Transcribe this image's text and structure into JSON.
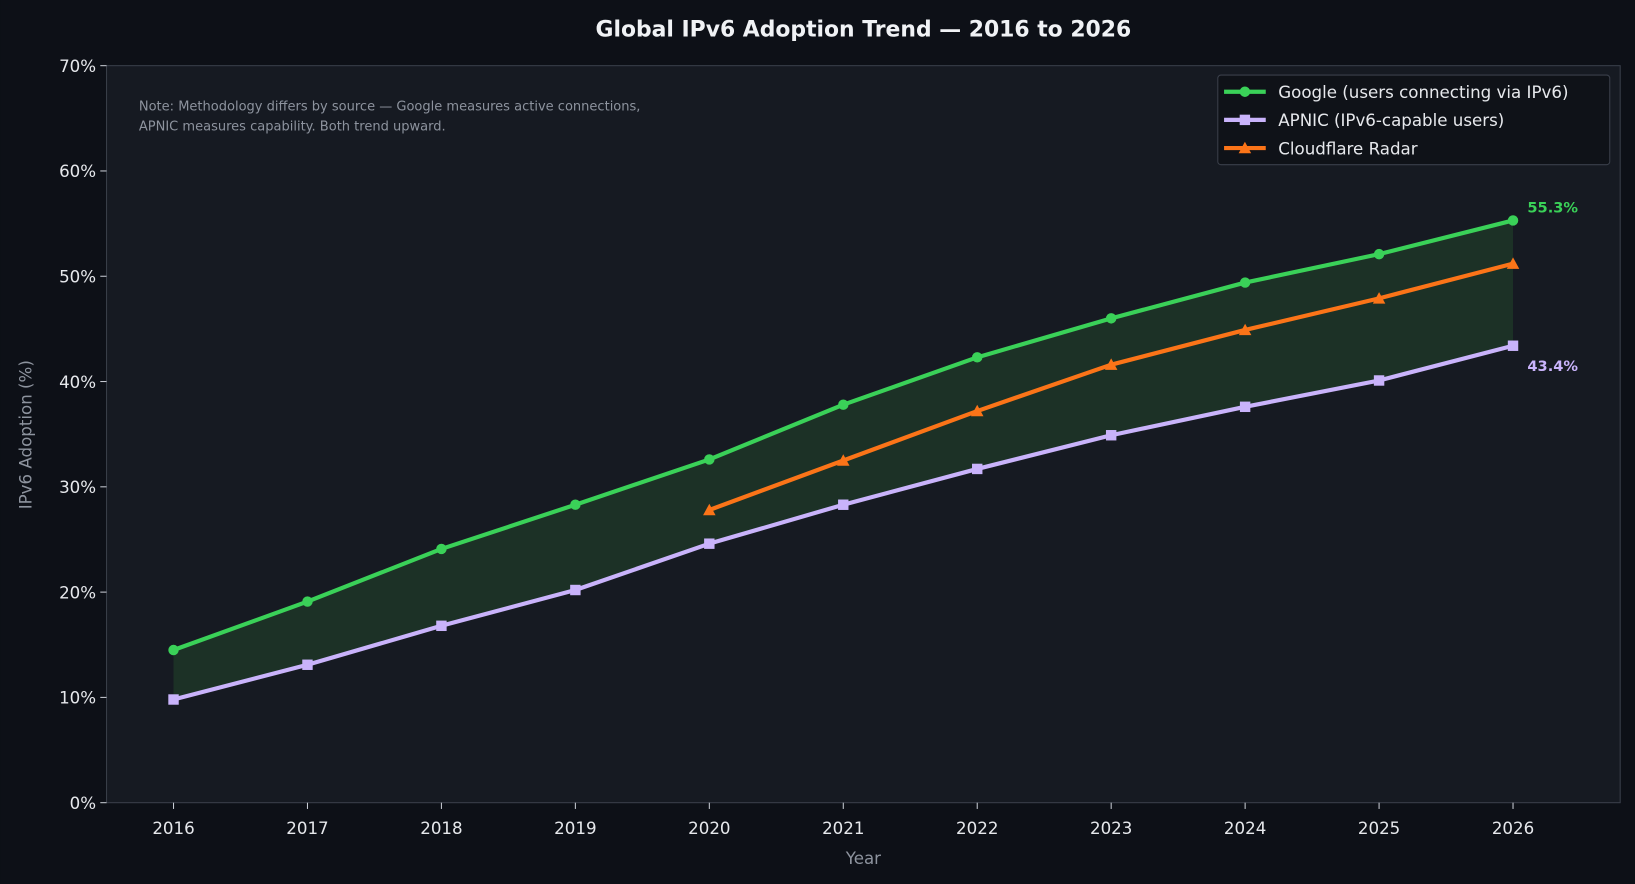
{
  "chart_data": {
    "type": "line",
    "title": "Global IPv6 Adoption Trend — 2016 to 2026",
    "xlabel": "Year",
    "ylabel": "IPv6 Adoption (%)",
    "x": [
      2016,
      2017,
      2018,
      2019,
      2020,
      2021,
      2022,
      2023,
      2024,
      2025,
      2026
    ],
    "xlim": [
      2015.5,
      2026.8
    ],
    "ylim": [
      0,
      70
    ],
    "yticks": [
      "0%",
      "10%",
      "20%",
      "30%",
      "40%",
      "50%",
      "60%",
      "70%"
    ],
    "xticks": [
      "2016",
      "2017",
      "2018",
      "2019",
      "2020",
      "2021",
      "2022",
      "2023",
      "2024",
      "2025",
      "2026"
    ],
    "grid": false,
    "legend_position": "top-right",
    "series": [
      {
        "name": "Google (users connecting via IPv6)",
        "color": "#3ad158",
        "marker": "circle",
        "values": [
          14.5,
          19.1,
          24.1,
          28.3,
          32.6,
          37.8,
          42.3,
          46.0,
          49.4,
          52.1,
          55.3
        ]
      },
      {
        "name": "APNIC (IPv6-capable users)",
        "color": "#c9b3fb",
        "marker": "square",
        "values": [
          9.8,
          13.1,
          16.8,
          20.2,
          24.6,
          28.3,
          31.7,
          34.9,
          37.6,
          40.1,
          43.4
        ]
      },
      {
        "name": "Cloudflare Radar",
        "color": "#fb7418",
        "marker": "triangle",
        "values": [
          null,
          null,
          null,
          null,
          27.8,
          32.5,
          37.2,
          41.6,
          44.9,
          47.9,
          51.2
        ]
      }
    ],
    "shaded_band": {
      "between": [
        "Google (users connecting via IPv6)",
        "APNIC (IPv6-capable users)"
      ],
      "color": "#1f3a28"
    },
    "annotations": [
      {
        "text": "55.3%",
        "color": "#3ad158"
      },
      {
        "text": "43.4%",
        "color": "#c9b3fb"
      }
    ],
    "note": [
      "Note: Methodology differs by source — Google measures active connections,",
      "APNIC measures capability. Both trend upward."
    ]
  }
}
